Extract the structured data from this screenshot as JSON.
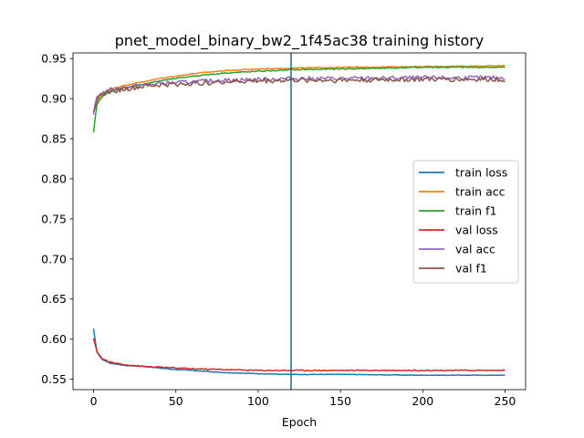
{
  "chart_data": {
    "type": "line",
    "title": "pnet_model_binary_bw2_1f45ac38 training history",
    "xlabel": "Epoch",
    "ylabel": "",
    "xlim": [
      -12.5,
      262.5
    ],
    "ylim": [
      0.537,
      0.957
    ],
    "xticks": [
      0,
      50,
      100,
      150,
      200,
      250
    ],
    "yticks": [
      0.55,
      0.6,
      0.65,
      0.7,
      0.75,
      0.8,
      0.85,
      0.9,
      0.95
    ],
    "grid": false,
    "legend_position": "center-right",
    "vertical_line": {
      "x": 120,
      "color": "#1a6a8a"
    },
    "series": [
      {
        "name": "train loss",
        "color": "#1f77b4",
        "x": [
          0,
          2,
          5,
          10,
          20,
          30,
          40,
          50,
          60,
          80,
          100,
          120,
          150,
          200,
          250
        ],
        "values": [
          0.613,
          0.584,
          0.575,
          0.57,
          0.567,
          0.566,
          0.564,
          0.562,
          0.561,
          0.558,
          0.557,
          0.556,
          0.556,
          0.555,
          0.555
        ],
        "noise": 0.0003
      },
      {
        "name": "train acc",
        "color": "#ff7f0e",
        "x": [
          0,
          2,
          5,
          10,
          20,
          30,
          40,
          50,
          60,
          80,
          100,
          120,
          150,
          200,
          250
        ],
        "values": [
          0.882,
          0.897,
          0.905,
          0.912,
          0.917,
          0.921,
          0.925,
          0.928,
          0.931,
          0.935,
          0.937,
          0.938,
          0.939,
          0.94,
          0.941
        ],
        "noise": 0.0006
      },
      {
        "name": "train f1",
        "color": "#2ca02c",
        "x": [
          0,
          2,
          5,
          10,
          20,
          30,
          40,
          50,
          60,
          80,
          100,
          120,
          150,
          200,
          250
        ],
        "values": [
          0.858,
          0.892,
          0.902,
          0.909,
          0.914,
          0.918,
          0.922,
          0.925,
          0.928,
          0.932,
          0.934,
          0.936,
          0.937,
          0.939,
          0.939
        ],
        "noise": 0.0007
      },
      {
        "name": "val loss",
        "color": "#d62728",
        "x": [
          0,
          2,
          5,
          10,
          20,
          30,
          40,
          50,
          60,
          80,
          100,
          120,
          150,
          200,
          250
        ],
        "values": [
          0.601,
          0.585,
          0.576,
          0.571,
          0.568,
          0.566,
          0.565,
          0.564,
          0.563,
          0.562,
          0.561,
          0.561,
          0.561,
          0.561,
          0.561
        ],
        "noise": 0.0007
      },
      {
        "name": "val acc",
        "color": "#9467bd",
        "x": [
          0,
          2,
          5,
          10,
          20,
          30,
          40,
          50,
          60,
          80,
          100,
          120,
          150,
          200,
          250
        ],
        "values": [
          0.88,
          0.902,
          0.907,
          0.911,
          0.914,
          0.917,
          0.919,
          0.92,
          0.921,
          0.923,
          0.924,
          0.925,
          0.925,
          0.926,
          0.926
        ],
        "noise": 0.0025
      },
      {
        "name": "val f1",
        "color": "#8c564b",
        "x": [
          0,
          2,
          5,
          10,
          20,
          30,
          40,
          50,
          60,
          80,
          100,
          120,
          150,
          200,
          250
        ],
        "values": [
          0.884,
          0.899,
          0.905,
          0.909,
          0.912,
          0.915,
          0.917,
          0.918,
          0.919,
          0.921,
          0.922,
          0.923,
          0.923,
          0.924,
          0.924
        ],
        "noise": 0.003
      }
    ]
  }
}
